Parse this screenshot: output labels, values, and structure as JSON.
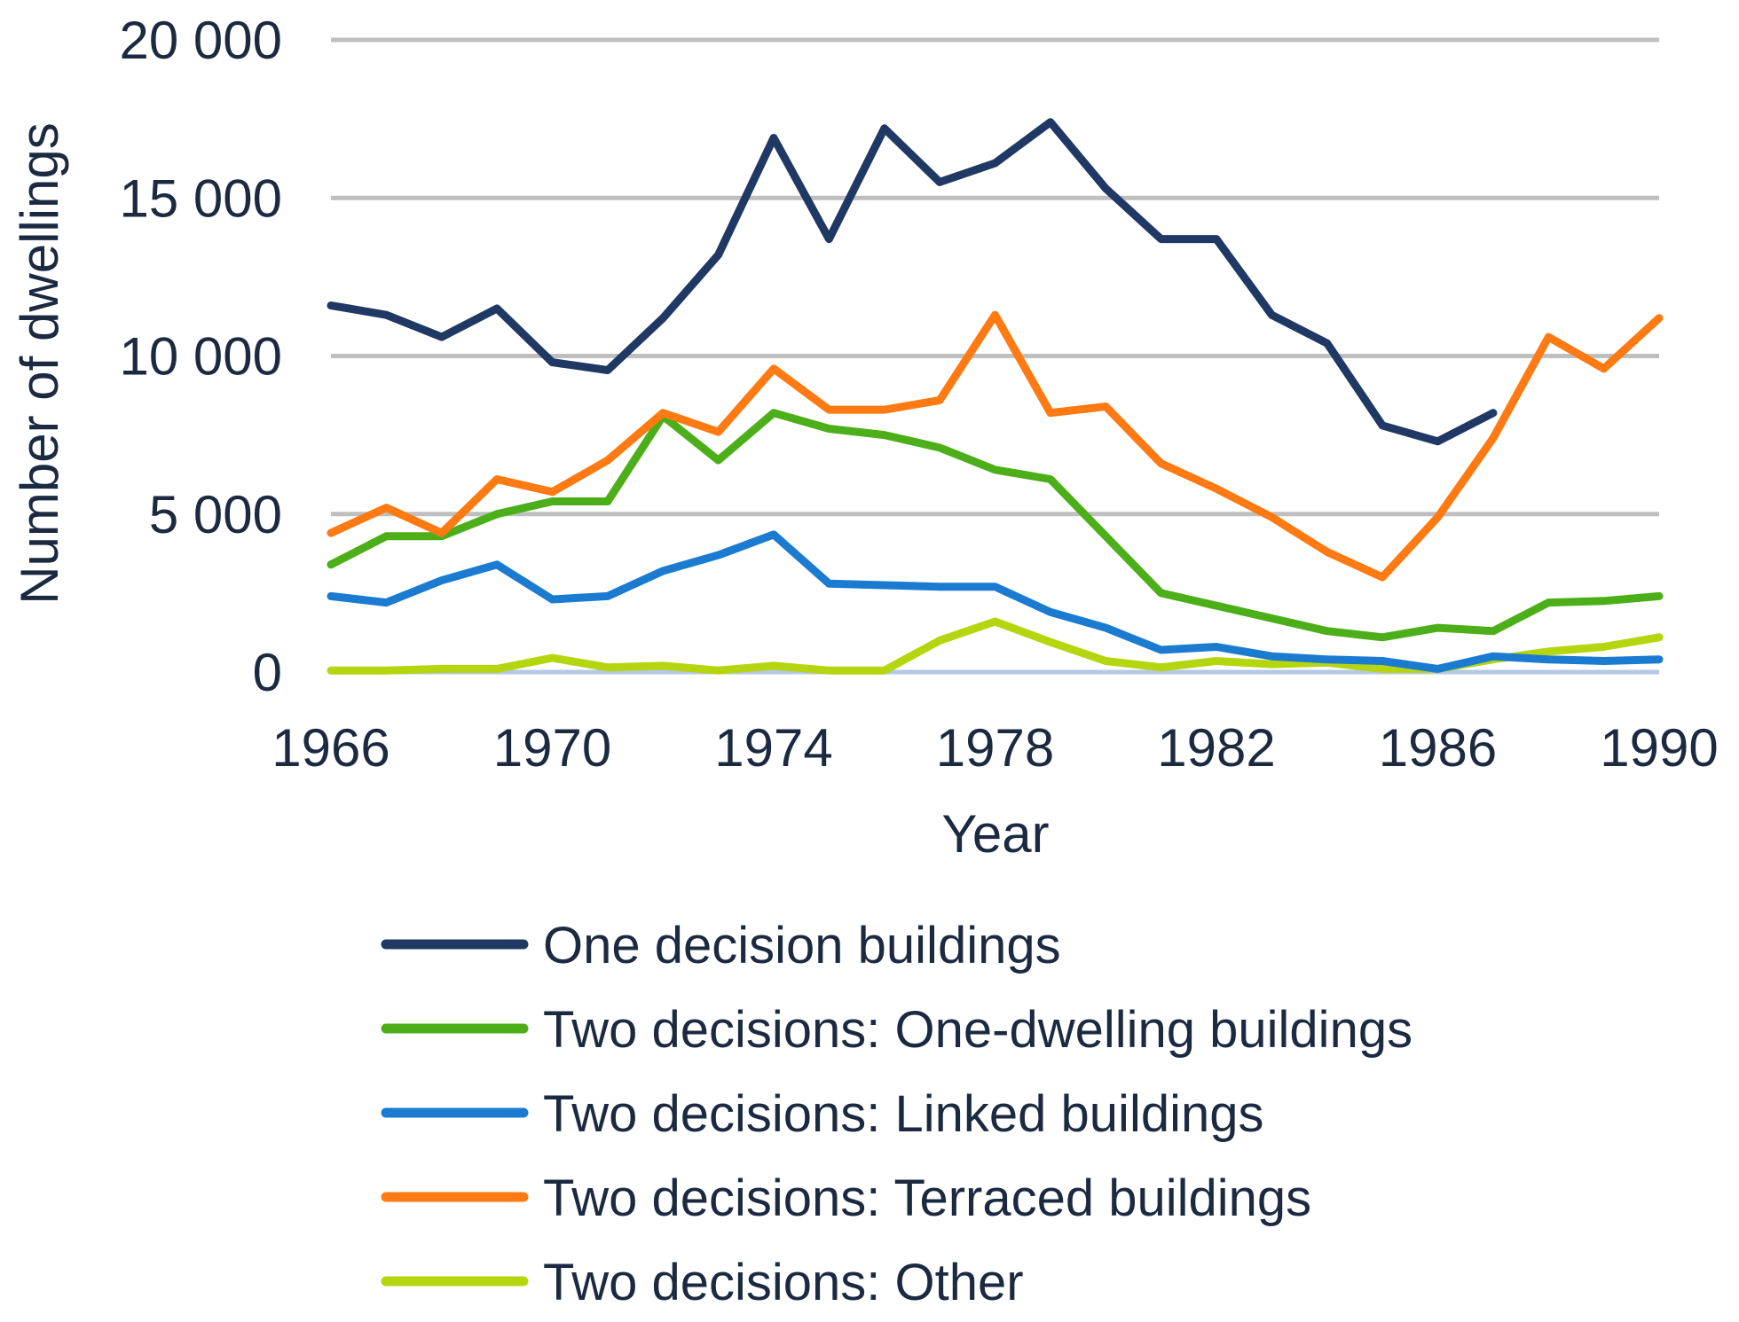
{
  "chart_data": {
    "type": "line",
    "title": "",
    "xlabel": "Year",
    "ylabel": "Number of dwellings",
    "ylim": [
      0,
      20000
    ],
    "xlim": [
      1966,
      1990
    ],
    "y_ticks": [
      0,
      5000,
      10000,
      15000,
      20000
    ],
    "y_tick_labels": [
      "0",
      "5 000",
      "10 000",
      "15 000",
      "20 000"
    ],
    "x_ticks": [
      1966,
      1970,
      1974,
      1978,
      1982,
      1986,
      1990
    ],
    "x_tick_labels": [
      "1966",
      "1970",
      "1974",
      "1978",
      "1982",
      "1986",
      "1990"
    ],
    "grid": "horizontal",
    "legend_position": "bottom",
    "x": [
      1966,
      1967,
      1968,
      1969,
      1970,
      1971,
      1972,
      1973,
      1974,
      1975,
      1976,
      1977,
      1978,
      1979,
      1980,
      1981,
      1982,
      1983,
      1984,
      1985,
      1986,
      1987,
      1988,
      1989,
      1990
    ],
    "series": [
      {
        "name": "One decision buildings",
        "color": "#1f3864",
        "values": [
          11600,
          11300,
          10600,
          11500,
          9800,
          9550,
          11200,
          13200,
          16900,
          13700,
          17200,
          15500,
          16100,
          17400,
          15300,
          13700,
          13700,
          11300,
          10400,
          7800,
          7300,
          8200,
          null,
          null,
          null
        ]
      },
      {
        "name": "Two decisions: One-dwelling buildings",
        "color": "#4caf1a",
        "values": [
          3400,
          4300,
          4300,
          5000,
          5400,
          5400,
          8100,
          6700,
          8200,
          7700,
          7500,
          7100,
          6400,
          6100,
          4300,
          2500,
          2100,
          1700,
          1300,
          1100,
          1400,
          1300,
          2200,
          2250,
          2400
        ]
      },
      {
        "name": "Two decisions: Linked buildings",
        "color": "#1a7bd1",
        "values": [
          2400,
          2200,
          2900,
          3400,
          2300,
          2400,
          3200,
          3700,
          4350,
          2800,
          2750,
          2700,
          2700,
          1900,
          1400,
          700,
          800,
          500,
          400,
          350,
          100,
          500,
          400,
          350,
          400
        ]
      },
      {
        "name": "Two decisions: Terraced buildings",
        "color": "#ff7a12",
        "values": [
          4400,
          5200,
          4400,
          6100,
          5700,
          6700,
          8200,
          7600,
          9600,
          8300,
          8300,
          8600,
          11300,
          8200,
          8400,
          6600,
          5800,
          4900,
          3800,
          3000,
          4900,
          7400,
          10600,
          9600,
          11200
        ]
      },
      {
        "name": "Two decisions: Other",
        "color": "#b5d60f",
        "values": [
          50,
          50,
          100,
          100,
          450,
          150,
          200,
          50,
          200,
          50,
          50,
          1000,
          1600,
          950,
          350,
          150,
          350,
          250,
          300,
          100,
          100,
          400,
          650,
          800,
          1100
        ]
      }
    ]
  }
}
